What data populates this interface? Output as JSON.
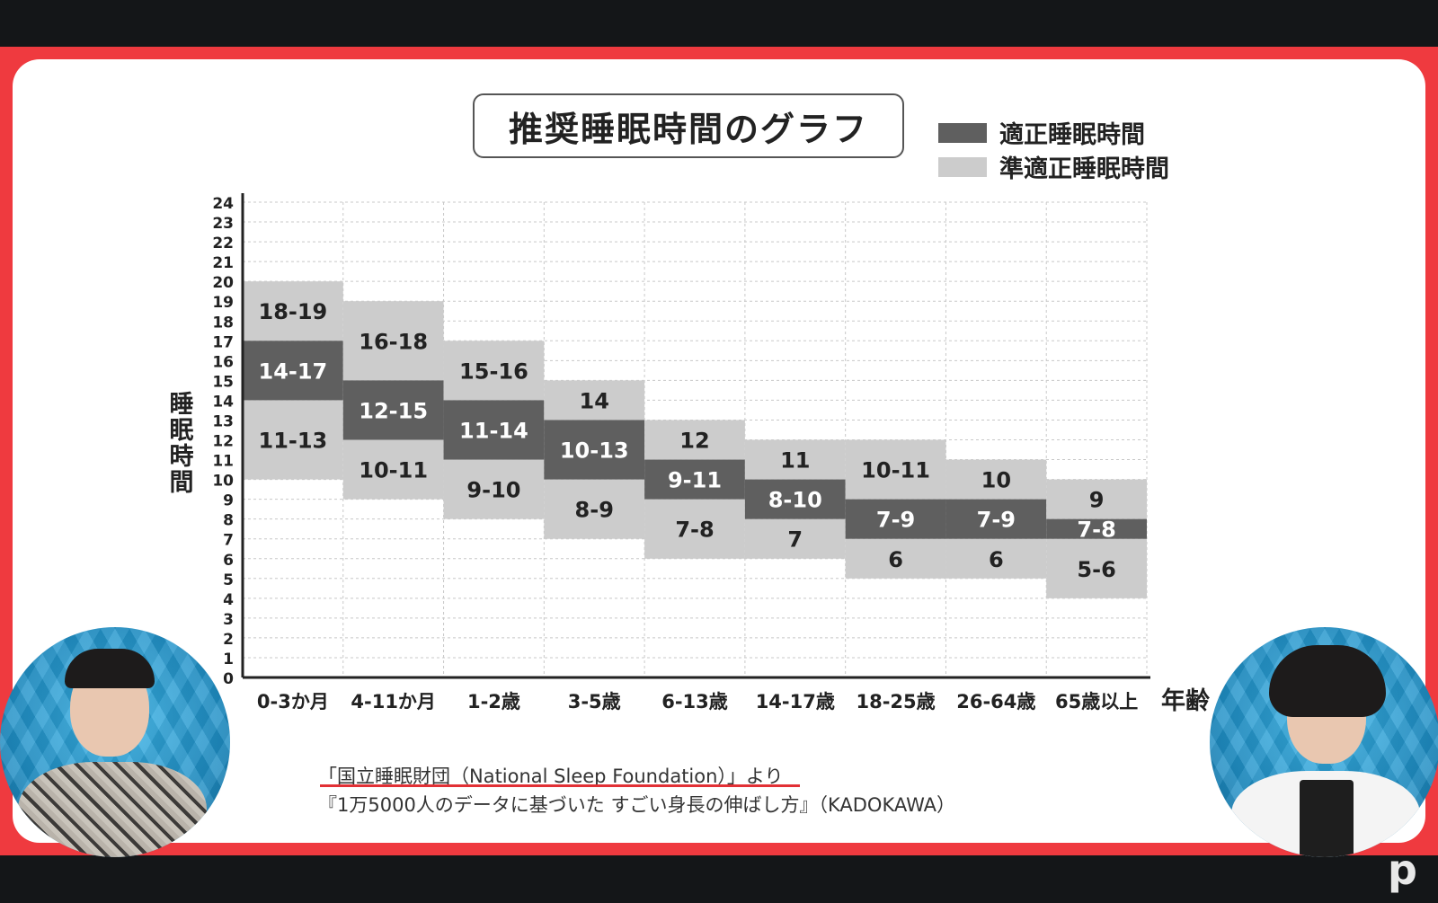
{
  "chart_data": {
    "type": "bar",
    "title": "推奨睡眠時間のグラフ",
    "xlabel": "年齢",
    "ylabel": "睡眠時間",
    "ylim": [
      0,
      24
    ],
    "yticks": [
      0,
      1,
      2,
      3,
      4,
      5,
      6,
      7,
      8,
      9,
      10,
      11,
      12,
      13,
      14,
      15,
      16,
      17,
      18,
      19,
      20,
      21,
      22,
      23,
      24
    ],
    "grid": true,
    "legend_position": "top-right",
    "categories": [
      "0-3か月",
      "4-11か月",
      "1-2歳",
      "3-5歳",
      "6-13歳",
      "14-17歳",
      "18-25歳",
      "26-64歳",
      "65歳以上"
    ],
    "series": [
      {
        "name": "適正睡眠時間",
        "color": "#5f5f5f",
        "ranges": [
          [
            14,
            17
          ],
          [
            12,
            15
          ],
          [
            11,
            14
          ],
          [
            10,
            13
          ],
          [
            9,
            11
          ],
          [
            8,
            10
          ],
          [
            7,
            9
          ],
          [
            7,
            9
          ],
          [
            7,
            8
          ]
        ],
        "labels": [
          "14-17",
          "12-15",
          "11-14",
          "10-13",
          "9-11",
          "8-10",
          "7-9",
          "7-9",
          "7-8"
        ]
      },
      {
        "name": "準適正睡眠時間",
        "color": "#cccccc",
        "upper_ranges": [
          [
            18,
            19
          ],
          [
            16,
            18
          ],
          [
            15,
            16
          ],
          [
            14,
            14
          ],
          [
            12,
            12
          ],
          [
            11,
            11
          ],
          [
            10,
            11
          ],
          [
            10,
            10
          ],
          [
            9,
            9
          ]
        ],
        "upper_labels": [
          "18-19",
          "16-18",
          "15-16",
          "14",
          "12",
          "11",
          "10-11",
          "10",
          "9"
        ],
        "lower_ranges": [
          [
            11,
            13
          ],
          [
            10,
            11
          ],
          [
            9,
            10
          ],
          [
            8,
            9
          ],
          [
            7,
            8
          ],
          [
            7,
            7
          ],
          [
            6,
            6
          ],
          [
            6,
            6
          ],
          [
            5,
            6
          ]
        ],
        "lower_labels": [
          "11-13",
          "10-11",
          "9-10",
          "8-9",
          "7-8",
          "7",
          "6",
          "6",
          "5-6"
        ]
      }
    ]
  },
  "legend": {
    "items": [
      {
        "label": "適正睡眠時間",
        "color": "#5f5f5f"
      },
      {
        "label": "準適正睡眠時間",
        "color": "#cccccc"
      }
    ]
  },
  "source": {
    "line1": "「国立睡眠財団（National Sleep Foundation）」より",
    "line2": "『1万5000人のデータに基づいた すごい身長の伸ばし方』（KADOKAWA）"
  },
  "colors": {
    "frame": "#ef3a3f",
    "card": "#ffffff",
    "background": "#141618",
    "accent_underline": "#e23035"
  }
}
